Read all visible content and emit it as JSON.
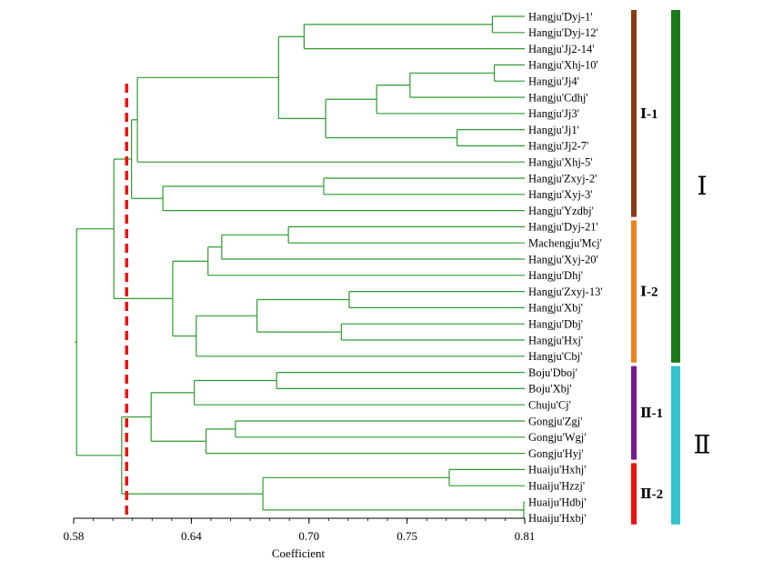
{
  "chart_data": {
    "type": "dendrogram",
    "xlabel": "Coefficient",
    "xlim": [
      0.58,
      0.81
    ],
    "ticks": [
      {
        "value": 0.58,
        "label": "0.58"
      },
      {
        "value": 0.64,
        "label": "0.64"
      },
      {
        "value": 0.7,
        "label": "0.70"
      },
      {
        "value": 0.75,
        "label": "0.75"
      },
      {
        "value": 0.81,
        "label": "0.81"
      }
    ],
    "cutoff": 0.607,
    "leaves": [
      "Hangju'Dyj-1'",
      "Hangju'Dyj-12'",
      "Hangju'Jj2-14'",
      "Hangju'Xhj-10'",
      "Hangju'Jj4'",
      "Hangju'Cdhj'",
      "Hangju'Jj3'",
      "Hangju'Jj1'",
      "Hangju'Jj2-7'",
      "Hangju'Xhj-5'",
      "Hangju'Zxyj-2'",
      "Hangju'Xyj-3'",
      "Hangju'Yzdbj'",
      "Hangju'Dyj-21'",
      "Machengju'Mcj'",
      "Hangju'Xyj-20'",
      "Hangju'Dhj'",
      "Hangju'Zxyj-13'",
      "Hangju'Xbj'",
      "Hangju'Dbj'",
      "Hangju'Hxj'",
      "Hangju'Cbj'",
      "Boju'Dboj'",
      "Boju'Xbj'",
      "Chuju'Cj'",
      "Gongju'Zgj'",
      "Gongju'Wgj'",
      "Gongju'Hyj'",
      "Huaiju'Hxhj'",
      "Huaiju'Hzzj'",
      "Huaiju'Hdbj'",
      "Huaiju'Hxbj'"
    ],
    "merges": [
      {
        "id": "a1",
        "children": [
          0,
          1
        ],
        "height": 0.7935
      },
      {
        "id": "a2",
        "children": [
          "a1",
          2
        ],
        "height": 0.6975
      },
      {
        "id": "a3",
        "children": [
          3,
          4
        ],
        "height": 0.7945
      },
      {
        "id": "a4",
        "children": [
          "a3",
          5
        ],
        "height": 0.7515
      },
      {
        "id": "a5",
        "children": [
          "a4",
          6
        ],
        "height": 0.7345
      },
      {
        "id": "a6",
        "children": [
          7,
          8
        ],
        "height": 0.7755
      },
      {
        "id": "a7",
        "children": [
          "a5",
          "a6"
        ],
        "height": 0.7085
      },
      {
        "id": "a8",
        "children": [
          "a2",
          "a7"
        ],
        "height": 0.6845
      },
      {
        "id": "a9",
        "children": [
          "a8",
          9
        ],
        "height": 0.6125
      },
      {
        "id": "a10",
        "children": [
          10,
          11
        ],
        "height": 0.7075
      },
      {
        "id": "a11",
        "children": [
          "a10",
          12
        ],
        "height": 0.6255
      },
      {
        "id": "a12",
        "children": [
          "a9",
          "a11"
        ],
        "height": 0.6095
      },
      {
        "id": "b1",
        "children": [
          13,
          14
        ],
        "height": 0.6895
      },
      {
        "id": "b2",
        "children": [
          "b1",
          15
        ],
        "height": 0.6555
      },
      {
        "id": "b3",
        "children": [
          "b2",
          16
        ],
        "height": 0.6485
      },
      {
        "id": "b4",
        "children": [
          17,
          18
        ],
        "height": 0.7205
      },
      {
        "id": "b5",
        "children": [
          19,
          20
        ],
        "height": 0.7165
      },
      {
        "id": "b6",
        "children": [
          "b4",
          "b5"
        ],
        "height": 0.6735
      },
      {
        "id": "b7",
        "children": [
          "b6",
          21
        ],
        "height": 0.6425
      },
      {
        "id": "b8",
        "children": [
          "b3",
          "b7"
        ],
        "height": 0.6305
      },
      {
        "id": "c0",
        "children": [
          "a12",
          "b8"
        ],
        "height": 0.6005
      },
      {
        "id": "d1",
        "children": [
          22,
          23
        ],
        "height": 0.6835
      },
      {
        "id": "d2",
        "children": [
          "d1",
          24
        ],
        "height": 0.6415
      },
      {
        "id": "d3",
        "children": [
          25,
          26
        ],
        "height": 0.6625
      },
      {
        "id": "d4",
        "children": [
          "d3",
          27
        ],
        "height": 0.6475
      },
      {
        "id": "d5",
        "children": [
          "d2",
          "d4"
        ],
        "height": 0.6195
      },
      {
        "id": "e1",
        "children": [
          28,
          29
        ],
        "height": 0.7715
      },
      {
        "id": "e2",
        "children": [
          30,
          31
        ],
        "height": 0.8095
      },
      {
        "id": "e3",
        "children": [
          "e1",
          "e2"
        ],
        "height": 0.6765
      },
      {
        "id": "f0",
        "children": [
          "d5",
          "e3"
        ],
        "height": 0.6045
      },
      {
        "id": "root",
        "children": [
          "c0",
          "f0"
        ],
        "height": 0.5815
      }
    ],
    "subgroups": [
      {
        "label": "Ⅰ-1",
        "color": "#8b3a14",
        "from": 0,
        "to": 12
      },
      {
        "label": "Ⅰ-2",
        "color": "#f07f1e",
        "from": 13,
        "to": 21
      },
      {
        "label": "Ⅱ-1",
        "color": "#7a1a8c",
        "from": 22,
        "to": 27
      },
      {
        "label": "Ⅱ-2",
        "color": "#ee1111",
        "from": 28,
        "to": 31
      }
    ],
    "groups": [
      {
        "label": "Ⅰ",
        "color": "#1a7a1a",
        "from": 0,
        "to": 21
      },
      {
        "label": "Ⅱ",
        "color": "#33c4cc",
        "from": 22,
        "to": 31
      }
    ],
    "colors": {
      "tree": "#2e9b2e",
      "cutoff": "#ee1111",
      "axis": "#000000"
    }
  }
}
